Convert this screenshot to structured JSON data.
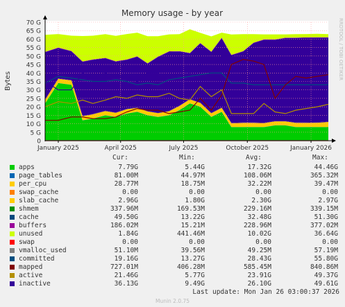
{
  "chart_data": {
    "type": "area",
    "title": "Memory usage - by year",
    "ylabel": "Bytes",
    "watermark": "RRDTOOL / TOBI OETIKER",
    "ylim": [
      0,
      70
    ],
    "y_ticks": [
      0,
      5,
      10,
      15,
      20,
      25,
      30,
      35,
      40,
      45,
      50,
      55,
      60,
      65,
      70
    ],
    "y_tick_labels": [
      "0",
      "5 G",
      "10 G",
      "15 G",
      "20 G",
      "25 G",
      "30 G",
      "35 G",
      "40 G",
      "45 G",
      "50 G",
      "55 G",
      "60 G",
      "65 G",
      "70 G"
    ],
    "x_range": [
      "2024-12-13",
      "2026-01-26"
    ],
    "x_ticks": [
      "2025-01-01",
      "2025-04-01",
      "2025-07-01",
      "2025-10-01",
      "2026-01-01"
    ],
    "x_tick_labels": [
      "January 2025",
      "April 2025",
      "July 2025",
      "October 2025",
      "January 2026"
    ],
    "x": [
      "2024-12-13",
      "2025-01-01",
      "2025-01-20",
      "2025-02-05",
      "2025-02-20",
      "2025-03-10",
      "2025-03-25",
      "2025-04-10",
      "2025-04-25",
      "2025-05-10",
      "2025-05-25",
      "2025-06-10",
      "2025-06-25",
      "2025-07-10",
      "2025-07-25",
      "2025-08-10",
      "2025-08-25",
      "2025-09-08",
      "2025-09-25",
      "2025-10-10",
      "2025-10-25",
      "2025-11-10",
      "2025-11-25",
      "2025-12-10",
      "2025-12-25",
      "2026-01-10",
      "2026-01-26"
    ],
    "stacked_series": [
      {
        "name": "apps",
        "color": "#00cc00",
        "values": [
          22,
          34,
          33,
          12,
          13,
          15,
          14,
          16,
          17,
          15,
          14,
          15,
          18,
          22,
          20,
          14,
          17,
          8,
          8,
          8,
          8,
          9,
          9,
          8,
          8,
          8,
          8
        ]
      },
      {
        "name": "page_tables",
        "color": "#0066b3",
        "values": [
          0.08,
          0.08,
          0.08,
          0.08,
          0.08,
          0.08,
          0.08,
          0.08,
          0.08,
          0.08,
          0.08,
          0.08,
          0.08,
          0.08,
          0.08,
          0.08,
          0.08,
          0.08,
          0.08,
          0.08,
          0.08,
          0.08,
          0.08,
          0.08,
          0.08,
          0.08,
          0.08
        ]
      },
      {
        "name": "per_cpu",
        "color": "#ffcc00",
        "values": [
          0.03,
          0.03,
          0.03,
          0.03,
          0.03,
          0.03,
          0.03,
          0.03,
          0.03,
          0.03,
          0.03,
          0.03,
          0.03,
          0.03,
          0.03,
          0.03,
          0.03,
          0.03,
          0.03,
          0.03,
          0.03,
          0.03,
          0.03,
          0.03,
          0.03,
          0.03,
          0.03
        ]
      },
      {
        "name": "swap_cache",
        "color": "#ff8000",
        "values": [
          0,
          0,
          0,
          0,
          0,
          0,
          0,
          0,
          0,
          0,
          0,
          0,
          0,
          0,
          0,
          0,
          0,
          0,
          0,
          0,
          0,
          0,
          0,
          0,
          0,
          0,
          0
        ]
      },
      {
        "name": "slab_cache",
        "color": "#ffcc00",
        "values": [
          2,
          2.5,
          2.5,
          2.3,
          2.5,
          2.4,
          2.4,
          2.5,
          2.3,
          2.2,
          2.2,
          2.3,
          2.4,
          2.3,
          2.2,
          2.1,
          2.3,
          2.2,
          2.4,
          2.4,
          2.3,
          2.3,
          2.3,
          2.4,
          2.4,
          2.5,
          2.96
        ]
      },
      {
        "name": "shmem",
        "color": "#330099",
        "values": [
          0.2,
          0.2,
          0.2,
          0.2,
          0.2,
          0.2,
          0.2,
          0.2,
          0.2,
          0.2,
          0.2,
          0.2,
          0.2,
          0.2,
          0.2,
          0.2,
          0.2,
          0.2,
          0.2,
          0.2,
          0.2,
          0.2,
          0.2,
          0.2,
          0.3,
          0.3,
          0.34
        ]
      },
      {
        "name": "cache",
        "color": "#330099",
        "values": [
          28,
          18,
          17,
          32,
          32,
          31,
          30,
          29,
          30,
          28,
          33,
          35,
          32,
          27,
          35,
          36,
          41,
          40,
          42,
          47,
          49,
          48,
          49,
          50,
          50,
          50,
          49.5
        ]
      },
      {
        "name": "buffers",
        "color": "#990099",
        "values": [
          0.2,
          0.2,
          0.2,
          0.2,
          0.2,
          0.2,
          0.2,
          0.2,
          0.2,
          0.2,
          0.2,
          0.2,
          0.2,
          0.2,
          0.2,
          0.2,
          0.2,
          0.2,
          0.2,
          0.2,
          0.2,
          0.2,
          0.2,
          0.2,
          0.2,
          0.2,
          0.19
        ]
      },
      {
        "name": "unused",
        "color": "#ccff00",
        "values": [
          10,
          8,
          9,
          15,
          14,
          14,
          15,
          15,
          14,
          16,
          12,
          10,
          10,
          14,
          6,
          9,
          3,
          12,
          10,
          5,
          3,
          3,
          2,
          2,
          2,
          2,
          1.84
        ]
      }
    ],
    "line_series": [
      {
        "name": "swap",
        "color": "#ff0000",
        "values": [
          0,
          0,
          0,
          0,
          0,
          0,
          0,
          0,
          0,
          0,
          0,
          0,
          0,
          0,
          0,
          0,
          0,
          0,
          0,
          0,
          0,
          0,
          0,
          0,
          0,
          0,
          0
        ]
      },
      {
        "name": "vmalloc_used",
        "color": "#808080",
        "values": [
          0.05,
          0.05,
          0.05,
          0.05,
          0.05,
          0.05,
          0.05,
          0.05,
          0.05,
          0.05,
          0.05,
          0.05,
          0.05,
          0.05,
          0.05,
          0.05,
          0.05,
          0.05,
          0.05,
          0.05,
          0.05,
          0.05,
          0.05,
          0.05,
          0.05,
          0.05,
          0.05
        ]
      },
      {
        "name": "committed",
        "color": "#004e80",
        "values": [
          34,
          38,
          37,
          36,
          35,
          35,
          36,
          35,
          33,
          34,
          33,
          36,
          37,
          38,
          39,
          40,
          40,
          34,
          34,
          33,
          33,
          33,
          33,
          33,
          33,
          33,
          33
        ]
      },
      {
        "name": "mapped",
        "color": "#800000",
        "values": [
          12,
          12,
          14,
          14,
          13,
          13,
          14,
          17,
          19,
          18,
          18,
          16,
          17,
          18,
          25,
          18,
          27,
          45,
          48,
          47,
          45,
          25,
          33,
          38,
          37,
          38,
          39
        ]
      },
      {
        "name": "active",
        "color": "#b38f00",
        "values": [
          20,
          23,
          22,
          24,
          22,
          24,
          26,
          25,
          27,
          26,
          26,
          28,
          25,
          24,
          32,
          26,
          30,
          16,
          16,
          16,
          22,
          17,
          16,
          18,
          19,
          20,
          21.5
        ]
      },
      {
        "name": "inactive",
        "color": "#330099",
        "values": [
          35,
          30,
          30,
          40,
          42,
          40,
          38,
          38,
          35,
          40,
          40,
          42,
          44,
          40,
          45,
          42,
          50,
          50,
          52,
          48,
          48,
          48,
          49,
          49,
          49,
          49,
          49.5
        ]
      }
    ],
    "legend": {
      "headers": [
        "Cur:",
        "Min:",
        "Avg:",
        "Max:"
      ],
      "rows": [
        {
          "name": "apps",
          "color": "#00cc00",
          "cur": "7.79G",
          "min": "5.44G",
          "avg": "17.32G",
          "max": "44.46G"
        },
        {
          "name": "page_tables",
          "color": "#0066b3",
          "cur": "81.00M",
          "min": "44.97M",
          "avg": "108.06M",
          "max": "365.32M"
        },
        {
          "name": "per_cpu",
          "color": "#ffcc00",
          "cur": "28.77M",
          "min": "18.75M",
          "avg": "32.22M",
          "max": "39.47M"
        },
        {
          "name": "swap_cache",
          "color": "#ff8000",
          "cur": "0.00",
          "min": "0.00",
          "avg": "0.00",
          "max": "0.00"
        },
        {
          "name": "slab_cache",
          "color": "#ffcc00",
          "cur": "2.96G",
          "min": "1.80G",
          "avg": "2.30G",
          "max": "2.97G"
        },
        {
          "name": "shmem",
          "color": "#008f00",
          "cur": "337.96M",
          "min": "169.53M",
          "avg": "229.16M",
          "max": "339.15M"
        },
        {
          "name": "cache",
          "color": "#00487d",
          "cur": "49.50G",
          "min": "13.22G",
          "avg": "32.48G",
          "max": "51.30G"
        },
        {
          "name": "buffers",
          "color": "#990099",
          "cur": "186.02M",
          "min": "15.21M",
          "avg": "228.96M",
          "max": "377.02M"
        },
        {
          "name": "unused",
          "color": "#ccff00",
          "cur": "1.84G",
          "min": "441.46M",
          "avg": "10.02G",
          "max": "36.64G"
        },
        {
          "name": "swap",
          "color": "#ff0000",
          "cur": "0.00",
          "min": "0.00",
          "avg": "0.00",
          "max": "0.00"
        },
        {
          "name": "vmalloc_used",
          "color": "#808080",
          "cur": "51.10M",
          "min": "39.56M",
          "avg": "49.25M",
          "max": "57.19M"
        },
        {
          "name": "committed",
          "color": "#004e80",
          "cur": "19.16G",
          "min": "13.27G",
          "avg": "28.43G",
          "max": "55.80G"
        },
        {
          "name": "mapped",
          "color": "#800000",
          "cur": "727.01M",
          "min": "406.28M",
          "avg": "585.45M",
          "max": "840.86M"
        },
        {
          "name": "active",
          "color": "#b38f00",
          "cur": "21.46G",
          "min": "5.77G",
          "avg": "23.91G",
          "max": "49.37G"
        },
        {
          "name": "inactive",
          "color": "#330099",
          "cur": "36.13G",
          "min": "9.49G",
          "avg": "26.10G",
          "max": "49.61G"
        }
      ]
    },
    "last_update": "Last update: Mon Jan 26 03:00:37 2026",
    "footer": "Munin 2.0.75"
  }
}
